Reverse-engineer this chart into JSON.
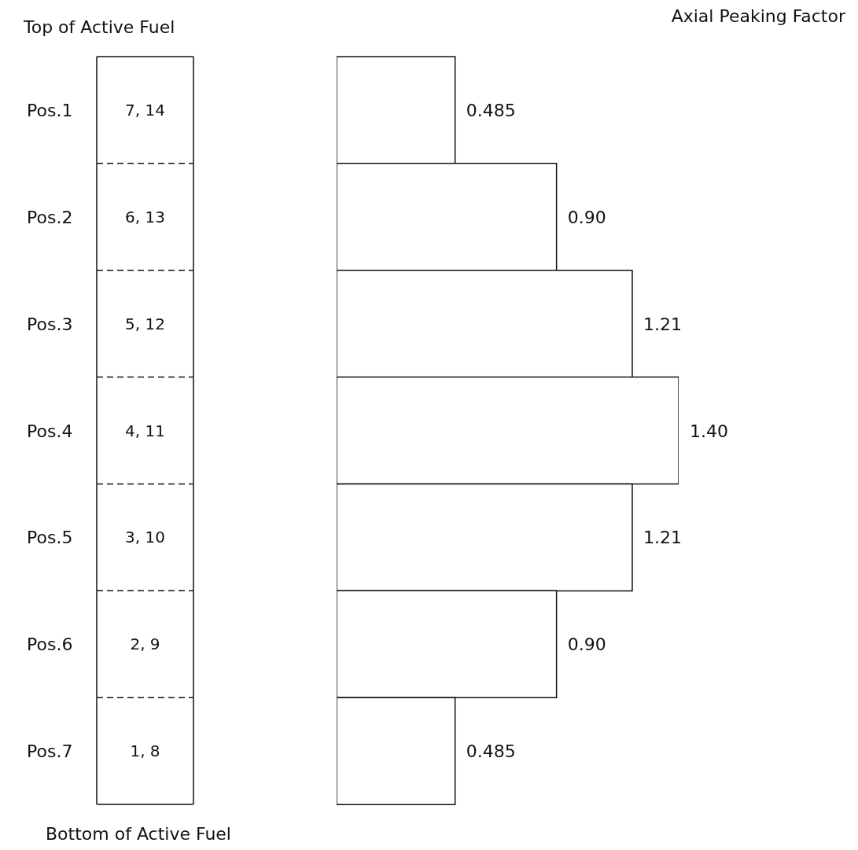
{
  "chart_data": {
    "type": "bar",
    "orientation": "horizontal",
    "title": "Axial Peaking Factor",
    "categories": [
      "Pos.1",
      "Pos.2",
      "Pos.3",
      "Pos.4",
      "Pos.5",
      "Pos.6",
      "Pos.7"
    ],
    "values": [
      0.485,
      0.9,
      1.21,
      1.4,
      1.21,
      0.9,
      0.485
    ],
    "value_labels": [
      "0.485",
      "0.90",
      "1.21",
      "1.40",
      "1.21",
      "0.90",
      "0.485"
    ],
    "color": "#ffffff",
    "annotations": [
      "Top of Active Fuel",
      "7, 14",
      "6, 13",
      "5, 12",
      "4, 11",
      "3, 10",
      "2, 9",
      "1, 8",
      "Bottom of Active Fuel"
    ],
    "grid": false,
    "legend": false
  }
}
